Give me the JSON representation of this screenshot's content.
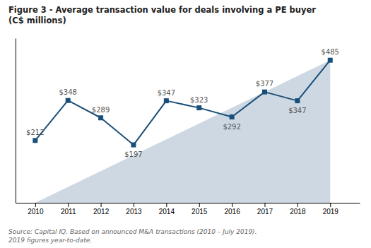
{
  "chart_data": {
    "type": "line",
    "title": "Figure 3 - Average transaction value for deals involving a PE buyer\n(C$ millions)",
    "annotations": [
      "Source: Capital IQ. Based on announced M&A transactions (2010 – July 2019).\n2019 figures year-to-date."
    ],
    "x": [
      2010,
      2011,
      2012,
      2013,
      2014,
      2015,
      2016,
      2017,
      2018,
      2019
    ],
    "values": [
      212,
      348,
      289,
      197,
      347,
      323,
      292,
      377,
      347,
      485
    ],
    "value_labels": [
      "$212",
      "$348",
      "$289",
      "$197",
      "$347",
      "$323",
      "$292",
      "$377",
      "$347",
      "$485"
    ],
    "data_labels": true,
    "color": "#1a4f7a",
    "marker": "square",
    "xlim": [
      2009.4,
      2019.9
    ],
    "xticks": [
      2010,
      2011,
      2012,
      2013,
      2014,
      2015,
      2016,
      2017,
      2018,
      2019
    ],
    "ylim": [
      0,
      560
    ],
    "yticks": [],
    "tick_labels": "x",
    "grid": false
  }
}
